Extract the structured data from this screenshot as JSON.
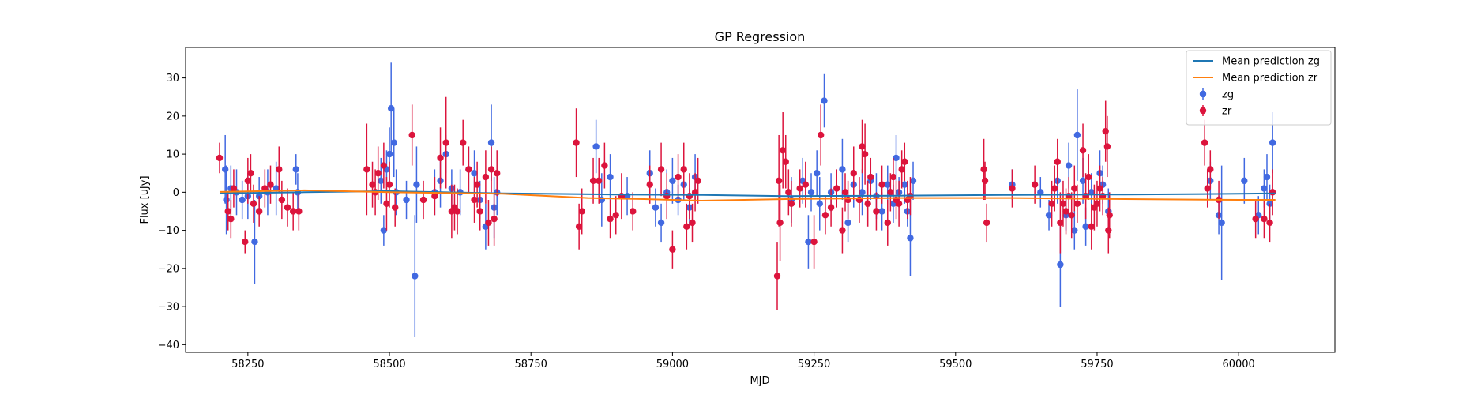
{
  "chart_data": {
    "type": "scatter",
    "title": "GP Regression",
    "xlabel": "MJD",
    "ylabel": "Flux [uJy]",
    "xlim": [
      58140,
      60170
    ],
    "ylim": [
      -42,
      38
    ],
    "xticks": [
      58250,
      58500,
      58750,
      59000,
      59250,
      59500,
      59750,
      60000
    ],
    "yticks": [
      -40,
      -30,
      -20,
      -10,
      0,
      10,
      20,
      30
    ],
    "grid": false,
    "legend_position": "top-right",
    "legend": [
      "Mean prediction zg",
      "Mean prediction zr",
      "zg",
      "zr"
    ],
    "series": [
      {
        "name": "Mean prediction zg",
        "kind": "line",
        "color": "#1f77b4",
        "x": [
          58200,
          58350,
          58500,
          58700,
          58900,
          59050,
          59200,
          59400,
          59600,
          59800,
          60000,
          60065
        ],
        "y": [
          -0.3,
          0.0,
          0.3,
          -0.3,
          -0.6,
          -0.7,
          -1.0,
          -0.9,
          -0.7,
          -0.6,
          -0.4,
          -0.3
        ]
      },
      {
        "name": "Mean prediction zr",
        "kind": "line",
        "color": "#ff7f0e",
        "x": [
          58200,
          58350,
          58500,
          58700,
          58850,
          58950,
          59050,
          59200,
          59400,
          59600,
          59800,
          60000,
          60065
        ],
        "y": [
          0.1,
          0.5,
          0.0,
          -0.4,
          -1.5,
          -1.8,
          -2.2,
          -1.8,
          -1.5,
          -1.5,
          -1.8,
          -2.0,
          -2.0
        ]
      },
      {
        "name": "zg",
        "kind": "errorbar",
        "color": "#4169e1",
        "points": [
          [
            58210,
            6,
            9
          ],
          [
            58212,
            -2,
            9
          ],
          [
            58220,
            1,
            6
          ],
          [
            58230,
            0,
            6
          ],
          [
            58240,
            -2,
            5
          ],
          [
            58250,
            -1,
            6
          ],
          [
            58262,
            -13,
            11
          ],
          [
            58270,
            -1,
            5
          ],
          [
            58285,
            0,
            6
          ],
          [
            58300,
            1,
            7
          ],
          [
            58335,
            6,
            4
          ],
          [
            58338,
            0,
            5
          ],
          [
            58485,
            3,
            6
          ],
          [
            58490,
            -10,
            4
          ],
          [
            58495,
            6,
            5
          ],
          [
            58500,
            10,
            7
          ],
          [
            58503,
            22,
            12
          ],
          [
            58508,
            13,
            9
          ],
          [
            58512,
            0,
            6
          ],
          [
            58530,
            -2,
            5
          ],
          [
            58545,
            -22,
            16
          ],
          [
            58548,
            2,
            10
          ],
          [
            58580,
            0,
            6
          ],
          [
            58590,
            3,
            7
          ],
          [
            58600,
            10,
            5
          ],
          [
            58610,
            1,
            5
          ],
          [
            58625,
            0,
            6
          ],
          [
            58640,
            6,
            6
          ],
          [
            58650,
            5,
            6
          ],
          [
            58660,
            -2,
            5
          ],
          [
            58670,
            -9,
            6
          ],
          [
            58680,
            13,
            10
          ],
          [
            58685,
            -4,
            8
          ],
          [
            58690,
            0,
            6
          ],
          [
            58865,
            12,
            7
          ],
          [
            58875,
            -2,
            7
          ],
          [
            58890,
            4,
            6
          ],
          [
            58920,
            -1,
            5
          ],
          [
            58960,
            5,
            6
          ],
          [
            58970,
            -4,
            5
          ],
          [
            58980,
            -8,
            5
          ],
          [
            58990,
            0,
            6
          ],
          [
            59000,
            3,
            6
          ],
          [
            59010,
            -2,
            4
          ],
          [
            59020,
            2,
            4
          ],
          [
            59030,
            -4,
            5
          ],
          [
            59040,
            4,
            6
          ],
          [
            59210,
            -2,
            6
          ],
          [
            59230,
            3,
            6
          ],
          [
            59240,
            -13,
            7
          ],
          [
            59245,
            0,
            5
          ],
          [
            59255,
            5,
            6
          ],
          [
            59260,
            -3,
            7
          ],
          [
            59268,
            24,
            7
          ],
          [
            59280,
            0,
            5
          ],
          [
            59300,
            6,
            8
          ],
          [
            59310,
            -8,
            5
          ],
          [
            59320,
            2,
            6
          ],
          [
            59335,
            0,
            6
          ],
          [
            59350,
            3,
            5
          ],
          [
            59360,
            -1,
            6
          ],
          [
            59370,
            -5,
            5
          ],
          [
            59380,
            2,
            5
          ],
          [
            59390,
            -3,
            5
          ],
          [
            59395,
            9,
            6
          ],
          [
            59400,
            0,
            4
          ],
          [
            59410,
            2,
            5
          ],
          [
            59415,
            -5,
            4
          ],
          [
            59420,
            -12,
            10
          ],
          [
            59425,
            3,
            5
          ],
          [
            59600,
            2,
            4
          ],
          [
            59650,
            0,
            4
          ],
          [
            59665,
            -6,
            4
          ],
          [
            59680,
            3,
            6
          ],
          [
            59685,
            -19,
            11
          ],
          [
            59695,
            -6,
            4
          ],
          [
            59700,
            7,
            6
          ],
          [
            59710,
            -10,
            5
          ],
          [
            59715,
            15,
            12
          ],
          [
            59725,
            3,
            6
          ],
          [
            59730,
            -9,
            5
          ],
          [
            59740,
            0,
            5
          ],
          [
            59755,
            5,
            6
          ],
          [
            59760,
            2,
            5
          ],
          [
            59770,
            -5,
            6
          ],
          [
            59950,
            3,
            5
          ],
          [
            59965,
            -6,
            5
          ],
          [
            59970,
            -8,
            15
          ],
          [
            60010,
            3,
            6
          ],
          [
            60035,
            -6,
            5
          ],
          [
            60045,
            1,
            5
          ],
          [
            60050,
            4,
            6
          ],
          [
            60055,
            -3,
            5
          ],
          [
            60060,
            13,
            8
          ]
        ]
      },
      {
        "name": "zr",
        "kind": "errorbar",
        "color": "#dc143c",
        "points": [
          [
            58200,
            9,
            4
          ],
          [
            58215,
            -5,
            5
          ],
          [
            58220,
            -7,
            5
          ],
          [
            58225,
            1,
            5
          ],
          [
            58245,
            -13,
            3
          ],
          [
            58250,
            3,
            6
          ],
          [
            58255,
            5,
            5
          ],
          [
            58260,
            -3,
            5
          ],
          [
            58270,
            -5,
            4
          ],
          [
            58280,
            1,
            5
          ],
          [
            58290,
            2,
            5
          ],
          [
            58305,
            6,
            6
          ],
          [
            58310,
            -2,
            5
          ],
          [
            58320,
            -4,
            5
          ],
          [
            58330,
            -5,
            5
          ],
          [
            58340,
            -5,
            5
          ],
          [
            58460,
            6,
            12
          ],
          [
            58470,
            2,
            6
          ],
          [
            58475,
            0,
            6
          ],
          [
            58480,
            5,
            7
          ],
          [
            58490,
            7,
            6
          ],
          [
            58495,
            -3,
            7
          ],
          [
            58500,
            2,
            6
          ],
          [
            58510,
            -4,
            5
          ],
          [
            58540,
            15,
            8
          ],
          [
            58560,
            -2,
            5
          ],
          [
            58580,
            -1,
            5
          ],
          [
            58590,
            9,
            8
          ],
          [
            58600,
            13,
            12
          ],
          [
            58610,
            -5,
            7
          ],
          [
            58615,
            -4,
            6
          ],
          [
            58620,
            -5,
            6
          ],
          [
            58630,
            13,
            6
          ],
          [
            58640,
            6,
            6
          ],
          [
            58650,
            -2,
            6
          ],
          [
            58655,
            2,
            6
          ],
          [
            58660,
            -5,
            5
          ],
          [
            58670,
            4,
            7
          ],
          [
            58675,
            -8,
            6
          ],
          [
            58680,
            6,
            6
          ],
          [
            58685,
            -7,
            7
          ],
          [
            58690,
            5,
            6
          ],
          [
            58830,
            13,
            9
          ],
          [
            58835,
            -9,
            6
          ],
          [
            58840,
            -5,
            6
          ],
          [
            58860,
            3,
            6
          ],
          [
            58870,
            3,
            6
          ],
          [
            58880,
            7,
            6
          ],
          [
            58890,
            -7,
            5
          ],
          [
            58900,
            -6,
            5
          ],
          [
            58910,
            -1,
            6
          ],
          [
            58930,
            -5,
            5
          ],
          [
            58960,
            2,
            5
          ],
          [
            58980,
            6,
            7
          ],
          [
            58990,
            -1,
            6
          ],
          [
            59000,
            -15,
            5
          ],
          [
            59010,
            4,
            6
          ],
          [
            59020,
            6,
            7
          ],
          [
            59025,
            -9,
            6
          ],
          [
            59030,
            -1,
            6
          ],
          [
            59035,
            -8,
            5
          ],
          [
            59040,
            0,
            5
          ],
          [
            59045,
            3,
            6
          ],
          [
            59185,
            -22,
            9
          ],
          [
            59188,
            3,
            12
          ],
          [
            59190,
            -8,
            10
          ],
          [
            59195,
            11,
            10
          ],
          [
            59200,
            8,
            7
          ],
          [
            59205,
            0,
            6
          ],
          [
            59210,
            -3,
            6
          ],
          [
            59225,
            1,
            5
          ],
          [
            59235,
            2,
            6
          ],
          [
            59250,
            -13,
            7
          ],
          [
            59262,
            15,
            8
          ],
          [
            59270,
            -6,
            5
          ],
          [
            59280,
            -4,
            5
          ],
          [
            59290,
            1,
            5
          ],
          [
            59300,
            -10,
            6
          ],
          [
            59305,
            0,
            5
          ],
          [
            59310,
            -2,
            5
          ],
          [
            59320,
            5,
            7
          ],
          [
            59330,
            -2,
            6
          ],
          [
            59335,
            12,
            7
          ],
          [
            59340,
            10,
            8
          ],
          [
            59345,
            -3,
            6
          ],
          [
            59350,
            4,
            5
          ],
          [
            59360,
            -5,
            5
          ],
          [
            59370,
            2,
            5
          ],
          [
            59380,
            -8,
            6
          ],
          [
            59385,
            0,
            5
          ],
          [
            59390,
            4,
            5
          ],
          [
            59395,
            -2,
            5
          ],
          [
            59400,
            -3,
            6
          ],
          [
            59405,
            6,
            5
          ],
          [
            59410,
            8,
            5
          ],
          [
            59415,
            -2,
            5
          ],
          [
            59420,
            -1,
            5
          ],
          [
            59550,
            6,
            8
          ],
          [
            59552,
            3,
            5
          ],
          [
            59555,
            -8,
            5
          ],
          [
            59600,
            1,
            5
          ],
          [
            59640,
            2,
            5
          ],
          [
            59670,
            -3,
            6
          ],
          [
            59675,
            1,
            6
          ],
          [
            59680,
            8,
            6
          ],
          [
            59685,
            -8,
            8
          ],
          [
            59690,
            -3,
            6
          ],
          [
            59695,
            -5,
            6
          ],
          [
            59700,
            -1,
            5
          ],
          [
            59705,
            -6,
            6
          ],
          [
            59710,
            1,
            6
          ],
          [
            59715,
            -3,
            5
          ],
          [
            59725,
            11,
            7
          ],
          [
            59730,
            -1,
            6
          ],
          [
            59735,
            4,
            6
          ],
          [
            59740,
            -9,
            6
          ],
          [
            59745,
            -4,
            6
          ],
          [
            59750,
            -3,
            6
          ],
          [
            59755,
            1,
            6
          ],
          [
            59760,
            -1,
            5
          ],
          [
            59765,
            16,
            8
          ],
          [
            59768,
            12,
            8
          ],
          [
            59770,
            -10,
            6
          ],
          [
            59772,
            -6,
            6
          ],
          [
            59940,
            13,
            6
          ],
          [
            59945,
            1,
            5
          ],
          [
            59950,
            6,
            5
          ],
          [
            59965,
            -2,
            5
          ],
          [
            60030,
            -7,
            5
          ],
          [
            60045,
            -7,
            5
          ],
          [
            60055,
            -8,
            5
          ],
          [
            60060,
            0,
            6
          ]
        ]
      }
    ]
  }
}
